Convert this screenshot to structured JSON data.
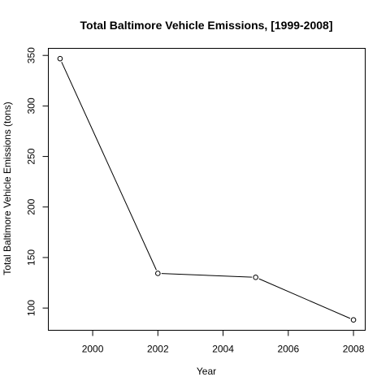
{
  "chart_data": {
    "type": "line",
    "title": "Total Baltimore Vehicle Emissions, [1999-2008]",
    "xlabel": "Year",
    "ylabel": "Total Baltimore Vehicle Emissions (tons)",
    "x": [
      1999,
      2002,
      2005,
      2008
    ],
    "series": [
      {
        "values": [
          346.8,
          134.3,
          130.4,
          88.3
        ]
      }
    ],
    "xlim": [
      1998.64,
      2008.36
    ],
    "ylim": [
      78.0,
      357.0
    ],
    "xticks": [
      2000,
      2002,
      2004,
      2006,
      2008
    ],
    "xtick_labels": [
      "2000",
      "2002",
      "2004",
      "2006",
      "2008"
    ],
    "yticks": [
      100,
      150,
      200,
      250,
      300,
      350
    ],
    "ytick_labels": [
      "100",
      "150",
      "200",
      "250",
      "300",
      "350"
    ],
    "markers": "open-circle",
    "grid": false,
    "colors": {
      "line": "#000000",
      "marker_fill": "#ffffff",
      "background": "#ffffff"
    }
  }
}
